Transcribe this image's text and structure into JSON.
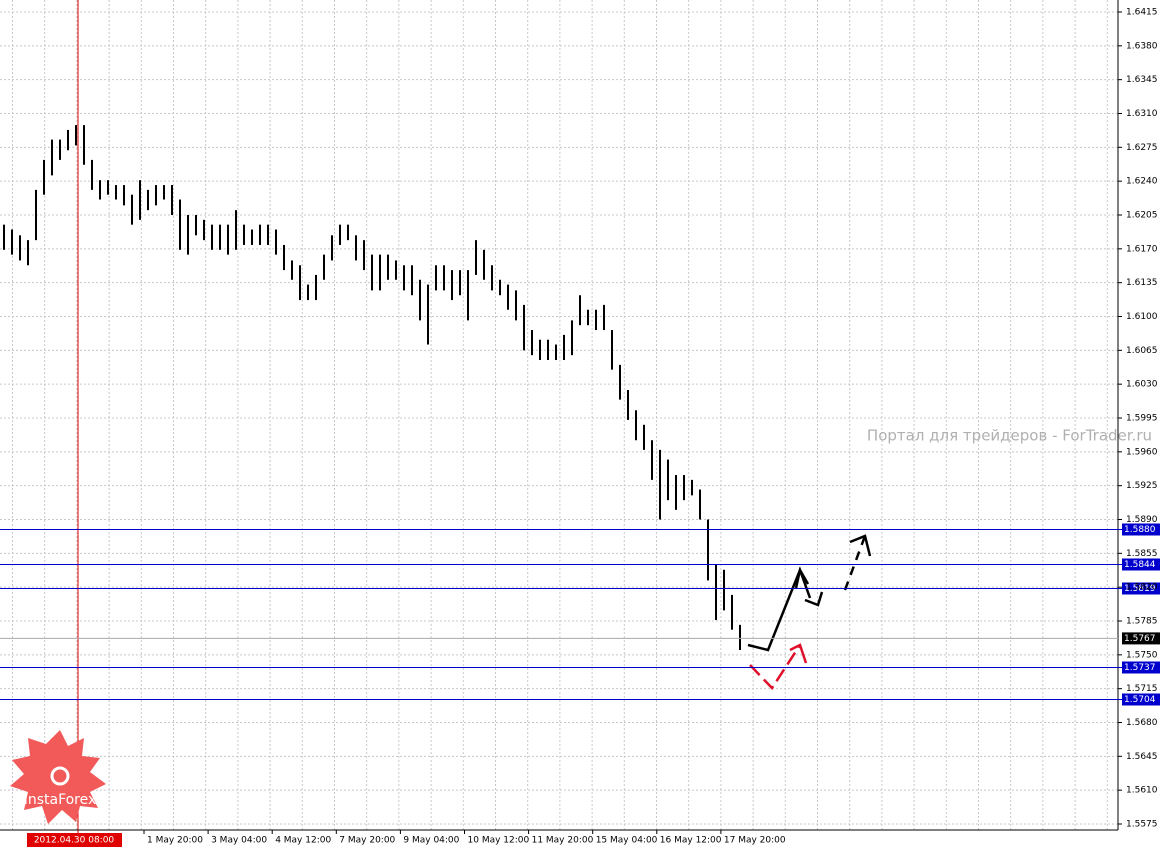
{
  "chart_data": {
    "type": "ohlc",
    "watermark": "Портал для трейдеров - ForTrader.ru",
    "logo": "InstaForex",
    "cursor_time": "2012.04.30 08:00",
    "x_labels": [
      "1 May 20:00",
      "3 May 04:00",
      "4 May 12:00",
      "7 May 20:00",
      "9 May 04:00",
      "10 May 12:00",
      "11 May 20:00",
      "15 May 04:00",
      "16 May 12:00",
      "17 May 20:00"
    ],
    "ylim": [
      1.5575,
      1.6415
    ],
    "yticks": [
      1.5575,
      {
        "value": 1.561,
        "label": "1.5610"
      },
      1.5645,
      {
        "value": 1.568,
        "label": "1.5680"
      },
      1.5715,
      {
        "value": 1.575,
        "label": "1.5750"
      },
      1.5785,
      {
        "value": 1.582,
        "label": "1.5820"
      },
      1.5855,
      {
        "value": 1.589,
        "label": "1.5890"
      },
      1.5925,
      {
        "value": 1.596,
        "label": "1.5960"
      },
      1.5995,
      {
        "value": 1.603,
        "label": "1.6030"
      },
      1.6065,
      {
        "value": 1.61,
        "label": "1.6100"
      },
      1.6135,
      {
        "value": 1.617,
        "label": "1.6170"
      },
      1.6205,
      {
        "value": 1.624,
        "label": "1.6240"
      },
      1.6275,
      {
        "value": 1.631,
        "label": "1.6310"
      },
      1.6345,
      {
        "value": 1.638,
        "label": "1.6380"
      },
      1.6415
    ],
    "levels": [
      {
        "value": 1.588,
        "label": "1.5880"
      },
      1.5844,
      1.5819,
      1.5737,
      1.5704
    ],
    "current_price": 1.5767,
    "color": "#000000",
    "level_color": "#0000cc",
    "high": [
      1.6195,
      1.619,
      1.6184,
      1.6179,
      1.6231,
      1.6262,
      1.6283,
      1.6283,
      1.6293,
      1.6298,
      1.6298,
      1.6262,
      1.6241,
      1.6241,
      1.6236,
      1.6236,
      1.6226,
      1.6241,
      1.6231,
      1.6236,
      1.6236,
      1.6236,
      1.6221,
      1.6205,
      1.6205,
      1.62,
      1.6195,
      1.6195,
      1.6195,
      1.621,
      1.6195,
      1.619,
      1.6195,
      1.6195,
      1.619,
      1.6174,
      1.6158,
      1.6153,
      1.6133,
      1.6143,
      1.6164,
      1.6184,
      1.6195,
      1.6195,
      1.6184,
      1.6179,
      1.6164,
      1.6164,
      1.6164,
      1.6158,
      1.6153,
      1.6153,
      1.6138,
      1.6133,
      1.6153,
      1.6153,
      1.6148,
      1.6148,
      1.6148,
      1.6179,
      1.6169,
      1.6153,
      1.6138,
      1.6133,
      1.6127,
      1.6112,
      1.6086,
      1.6076,
      1.6076,
      1.6071,
      1.6081,
      1.6096,
      1.6122,
      1.6107,
      1.6107,
      1.6112,
      1.6086,
      1.605,
      1.6024,
      1.6003,
      1.5988,
      1.5972,
      1.5962,
      1.5952,
      1.5936,
      1.5936,
      1.5931,
      1.5921,
      1.589,
      1.5843,
      1.5838,
      1.5812,
      1.5781
    ],
    "low": [
      1.6169,
      1.6164,
      1.6158,
      1.6153,
      1.6179,
      1.6226,
      1.6246,
      1.6262,
      1.6272,
      1.6277,
      1.6257,
      1.6231,
      1.6221,
      1.6226,
      1.6221,
      1.6215,
      1.6195,
      1.62,
      1.621,
      1.6215,
      1.6221,
      1.6205,
      1.6169,
      1.6164,
      1.6184,
      1.6179,
      1.6169,
      1.6169,
      1.6164,
      1.6169,
      1.6174,
      1.6174,
      1.6174,
      1.6174,
      1.6164,
      1.6148,
      1.6138,
      1.6117,
      1.6117,
      1.6117,
      1.6138,
      1.6158,
      1.6174,
      1.6179,
      1.6158,
      1.6148,
      1.6127,
      1.6127,
      1.6138,
      1.6138,
      1.6127,
      1.6122,
      1.6096,
      1.6071,
      1.6127,
      1.6127,
      1.6117,
      1.6122,
      1.6096,
      1.6143,
      1.6138,
      1.6127,
      1.6122,
      1.6107,
      1.6096,
      1.6065,
      1.606,
      1.6055,
      1.6055,
      1.6055,
      1.6055,
      1.606,
      1.6091,
      1.6091,
      1.6086,
      1.6086,
      1.6045,
      1.6014,
      1.5993,
      1.5972,
      1.5962,
      1.5931,
      1.589,
      1.591,
      1.59,
      1.591,
      1.5915,
      1.589,
      1.5827,
      1.5786,
      1.5796,
      1.5776,
      1.5755
    ]
  }
}
